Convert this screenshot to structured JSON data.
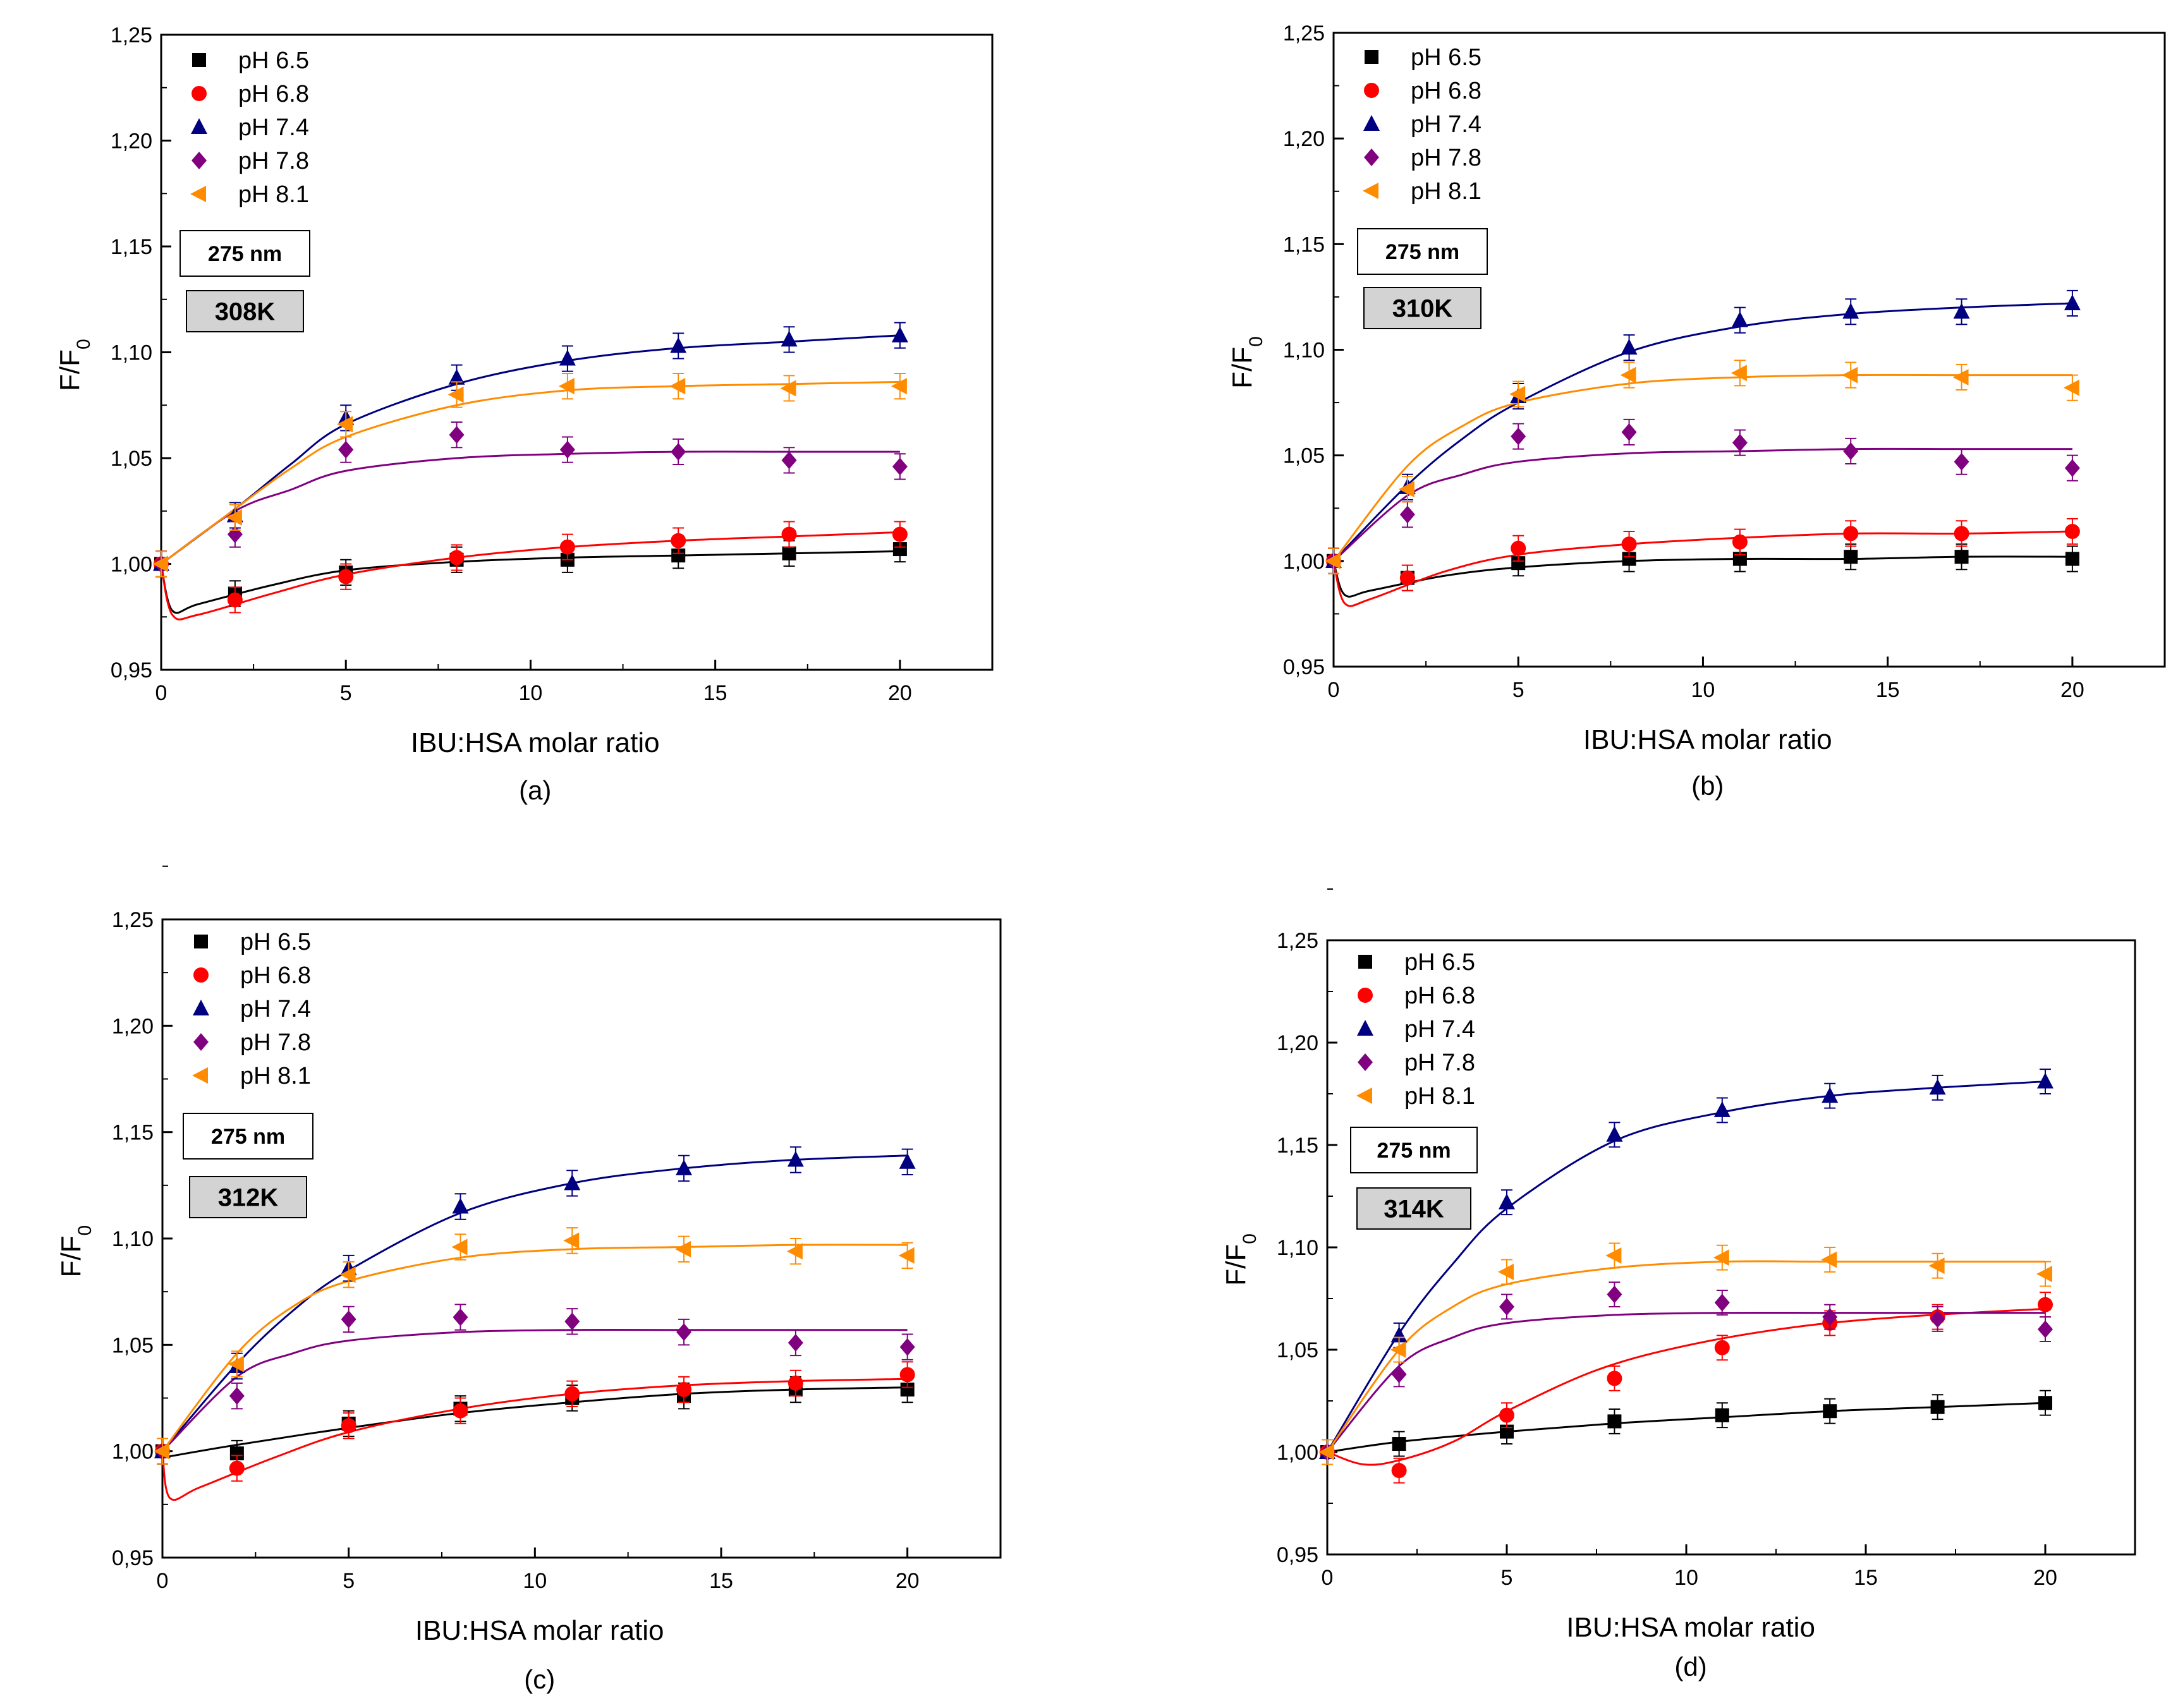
{
  "figure": {
    "panels": [
      {
        "id": "a",
        "caption": "(a)",
        "wavelength_label": "275 nm",
        "temperature_label": "308K"
      },
      {
        "id": "b",
        "caption": "(b)",
        "wavelength_label": "275 nm",
        "temperature_label": "310K"
      },
      {
        "id": "c",
        "caption": "(c)",
        "wavelength_label": "275 nm",
        "temperature_label": "312K"
      },
      {
        "id": "d",
        "caption": "(d)",
        "wavelength_label": "275 nm",
        "temperature_label": "314K"
      }
    ]
  },
  "chart_data": [
    {
      "type": "scatter",
      "title": "308K",
      "xlabel": "IBU:HSA molar ratio",
      "ylabel": "F/F0",
      "xlim": [
        0,
        22.5
      ],
      "ylim": [
        0.95,
        1.25
      ],
      "xticks": [
        "0",
        "5",
        "10",
        "15",
        "20"
      ],
      "yticks": [
        "0,95",
        "1,00",
        "1,05",
        "1,10",
        "1,15",
        "1,20",
        "1,25"
      ],
      "x": [
        0,
        2,
        5,
        8,
        11,
        14,
        17,
        20
      ],
      "series": [
        {
          "name": "pH 6.5",
          "color": "#000000",
          "marker": "square",
          "values": [
            1.0,
            0.986,
            0.996,
            1.002,
            1.002,
            1.004,
            1.005,
            1.007
          ],
          "fit": [
            1.0,
            0.978,
            0.981,
            0.99,
            0.997,
            1.001,
            1.003,
            1.004,
            1.005,
            1.006
          ],
          "fit_x": [
            0,
            0.3,
            1,
            3,
            5,
            8,
            11,
            14,
            17,
            20
          ]
        },
        {
          "name": "pH 6.8",
          "color": "#ff0000",
          "marker": "circle",
          "values": [
            1.0,
            0.983,
            0.994,
            1.003,
            1.008,
            1.011,
            1.014,
            1.014
          ],
          "fit": [
            1.0,
            0.976,
            0.976,
            0.986,
            0.995,
            1.003,
            1.008,
            1.011,
            1.013,
            1.015
          ],
          "fit_x": [
            0,
            0.3,
            1,
            3,
            5,
            8,
            11,
            14,
            17,
            20
          ]
        },
        {
          "name": "pH 7.4",
          "color": "#000080",
          "marker": "triangle-up",
          "values": [
            1.0,
            1.023,
            1.069,
            1.088,
            1.097,
            1.103,
            1.106,
            1.108
          ],
          "fit": [
            1.0,
            1.026,
            1.047,
            1.066,
            1.085,
            1.096,
            1.102,
            1.105,
            1.108
          ],
          "fit_x": [
            0,
            2,
            3.5,
            5,
            8,
            11,
            14,
            17,
            20
          ]
        },
        {
          "name": "pH 7.8",
          "color": "#800080",
          "marker": "diamond",
          "values": [
            1.0,
            1.014,
            1.054,
            1.061,
            1.054,
            1.053,
            1.049,
            1.046
          ],
          "fit": [
            1.0,
            1.025,
            1.035,
            1.044,
            1.05,
            1.052,
            1.053,
            1.053,
            1.053
          ],
          "fit_x": [
            0,
            2,
            3.5,
            5,
            8,
            11,
            14,
            17,
            20
          ]
        },
        {
          "name": "pH 8.1",
          "color": "#ff8c00",
          "marker": "triangle-left",
          "values": [
            1.0,
            1.022,
            1.066,
            1.08,
            1.084,
            1.084,
            1.083,
            1.084
          ],
          "fit": [
            1.0,
            1.026,
            1.045,
            1.06,
            1.075,
            1.082,
            1.084,
            1.085,
            1.086
          ],
          "fit_x": [
            0,
            2,
            3.5,
            5,
            8,
            11,
            14,
            17,
            20
          ]
        }
      ]
    },
    {
      "type": "scatter",
      "title": "310K",
      "xlabel": "IBU:HSA molar ratio",
      "ylabel": "F/F0",
      "xlim": [
        0,
        22.5
      ],
      "ylim": [
        0.95,
        1.25
      ],
      "xticks": [
        "0",
        "5",
        "10",
        "15",
        "20"
      ],
      "yticks": [
        "0,95",
        "1,00",
        "1,05",
        "1,10",
        "1,15",
        "1,20",
        "1,25"
      ],
      "x": [
        0,
        2,
        5,
        8,
        11,
        14,
        17,
        20
      ],
      "series": [
        {
          "name": "pH 6.5",
          "color": "#000000",
          "marker": "square",
          "values": [
            1.0,
            0.992,
            0.999,
            1.001,
            1.001,
            1.002,
            1.002,
            1.001
          ],
          "fit": [
            1.0,
            0.984,
            0.986,
            0.993,
            0.997,
            1.0,
            1.001,
            1.001,
            1.002,
            1.002
          ],
          "fit_x": [
            0,
            0.3,
            1,
            3,
            5,
            8,
            11,
            14,
            17,
            20
          ]
        },
        {
          "name": "pH 6.8",
          "color": "#ff0000",
          "marker": "circle",
          "values": [
            1.0,
            0.992,
            1.006,
            1.008,
            1.009,
            1.013,
            1.013,
            1.014
          ],
          "fit": [
            1.0,
            0.98,
            0.982,
            0.995,
            1.003,
            1.008,
            1.011,
            1.013,
            1.013,
            1.014
          ],
          "fit_x": [
            0,
            0.3,
            1,
            3,
            5,
            8,
            11,
            14,
            17,
            20
          ]
        },
        {
          "name": "pH 7.4",
          "color": "#000080",
          "marker": "triangle-up",
          "values": [
            1.0,
            1.035,
            1.078,
            1.101,
            1.114,
            1.118,
            1.118,
            1.122
          ],
          "fit": [
            1.0,
            1.036,
            1.058,
            1.075,
            1.099,
            1.111,
            1.117,
            1.12,
            1.122
          ],
          "fit_x": [
            0,
            2,
            3.5,
            5,
            8,
            11,
            14,
            17,
            20
          ]
        },
        {
          "name": "pH 7.8",
          "color": "#800080",
          "marker": "diamond",
          "values": [
            1.0,
            1.022,
            1.059,
            1.061,
            1.056,
            1.052,
            1.047,
            1.044
          ],
          "fit": [
            1.0,
            1.031,
            1.041,
            1.047,
            1.051,
            1.052,
            1.053,
            1.053,
            1.053
          ],
          "fit_x": [
            0,
            2,
            3.5,
            5,
            8,
            11,
            14,
            17,
            20
          ]
        },
        {
          "name": "pH 8.1",
          "color": "#ff8c00",
          "marker": "triangle-left",
          "values": [
            1.0,
            1.034,
            1.079,
            1.088,
            1.089,
            1.088,
            1.087,
            1.082
          ],
          "fit": [
            1.0,
            1.045,
            1.064,
            1.075,
            1.084,
            1.087,
            1.088,
            1.088,
            1.088
          ],
          "fit_x": [
            0,
            2,
            3.5,
            5,
            8,
            11,
            14,
            17,
            20
          ]
        }
      ]
    },
    {
      "type": "scatter",
      "title": "312K",
      "xlabel": "IBU:HSA molar ratio",
      "ylabel": "F/F0",
      "xlim": [
        0,
        22.5
      ],
      "ylim": [
        0.95,
        1.25
      ],
      "xticks": [
        "0",
        "5",
        "10",
        "15",
        "20"
      ],
      "yticks": [
        "0,95",
        "1,00",
        "1,05",
        "1,10",
        "1,15",
        "1,20",
        "1,25"
      ],
      "x": [
        0,
        2,
        5,
        8,
        11,
        14,
        17,
        20
      ],
      "series": [
        {
          "name": "pH 6.5",
          "color": "#000000",
          "marker": "square",
          "values": [
            1.0,
            0.999,
            1.013,
            1.02,
            1.025,
            1.026,
            1.029,
            1.029
          ],
          "fit": [
            0.997,
            1.003,
            1.011,
            1.018,
            1.023,
            1.027,
            1.029,
            1.03
          ],
          "fit_x": [
            0,
            2,
            5,
            8,
            11,
            14,
            17,
            20
          ]
        },
        {
          "name": "pH 6.8",
          "color": "#ff0000",
          "marker": "circle",
          "values": [
            1.0,
            0.992,
            1.012,
            1.019,
            1.027,
            1.029,
            1.032,
            1.036
          ],
          "fit": [
            1.0,
            0.978,
            0.983,
            0.997,
            1.009,
            1.02,
            1.027,
            1.031,
            1.033,
            1.034
          ],
          "fit_x": [
            0,
            0.2,
            1,
            3,
            5,
            8,
            11,
            14,
            17,
            20
          ]
        },
        {
          "name": "pH 7.4",
          "color": "#000080",
          "marker": "triangle-up",
          "values": [
            1.0,
            1.04,
            1.086,
            1.115,
            1.126,
            1.133,
            1.137,
            1.136
          ],
          "fit": [
            1.0,
            1.041,
            1.066,
            1.085,
            1.112,
            1.126,
            1.133,
            1.137,
            1.139
          ],
          "fit_x": [
            0,
            2,
            3.5,
            5,
            8,
            11,
            14,
            17,
            20
          ]
        },
        {
          "name": "pH 7.8",
          "color": "#800080",
          "marker": "diamond",
          "values": [
            1.0,
            1.026,
            1.062,
            1.063,
            1.061,
            1.056,
            1.051,
            1.049
          ],
          "fit": [
            1.0,
            1.035,
            1.046,
            1.052,
            1.056,
            1.057,
            1.057,
            1.057,
            1.057
          ],
          "fit_x": [
            0,
            2,
            3.5,
            5,
            8,
            11,
            14,
            17,
            20
          ]
        },
        {
          "name": "pH 8.1",
          "color": "#ff8c00",
          "marker": "triangle-left",
          "values": [
            1.0,
            1.041,
            1.083,
            1.096,
            1.099,
            1.095,
            1.094,
            1.092
          ],
          "fit": [
            1.0,
            1.046,
            1.068,
            1.08,
            1.091,
            1.095,
            1.096,
            1.097,
            1.097
          ],
          "fit_x": [
            0,
            2,
            3.5,
            5,
            8,
            11,
            14,
            17,
            20
          ]
        }
      ]
    },
    {
      "type": "scatter",
      "title": "314K",
      "xlabel": "IBU:HSA molar ratio",
      "ylabel": "F/F0",
      "xlim": [
        0,
        22.5
      ],
      "ylim": [
        0.95,
        1.25
      ],
      "xticks": [
        "0",
        "5",
        "10",
        "15",
        "20"
      ],
      "yticks": [
        "0,95",
        "1,00",
        "1,05",
        "1,10",
        "1,15",
        "1,20",
        "1,25"
      ],
      "x": [
        0,
        2,
        5,
        8,
        11,
        14,
        17,
        20
      ],
      "series": [
        {
          "name": "pH 6.5",
          "color": "#000000",
          "marker": "square",
          "values": [
            1.0,
            1.004,
            1.01,
            1.015,
            1.018,
            1.02,
            1.022,
            1.024
          ],
          "fit": [
            1.0,
            1.005,
            1.01,
            1.014,
            1.017,
            1.02,
            1.022,
            1.024
          ],
          "fit_x": [
            0,
            2,
            5,
            8,
            11,
            14,
            17,
            20
          ]
        },
        {
          "name": "pH 6.8",
          "color": "#ff0000",
          "marker": "circle",
          "values": [
            1.0,
            0.991,
            1.018,
            1.036,
            1.051,
            1.063,
            1.066,
            1.072
          ],
          "fit": [
            1.0,
            0.994,
            0.996,
            1.005,
            1.02,
            1.04,
            1.052,
            1.061,
            1.066,
            1.07
          ],
          "fit_x": [
            0,
            1,
            2,
            3.5,
            5,
            7.5,
            10,
            13,
            16,
            20
          ]
        },
        {
          "name": "pH 7.4",
          "color": "#000080",
          "marker": "triangle-up",
          "values": [
            1.0,
            1.057,
            1.122,
            1.155,
            1.167,
            1.174,
            1.178,
            1.181
          ],
          "fit": [
            1.0,
            1.058,
            1.092,
            1.119,
            1.152,
            1.166,
            1.174,
            1.178,
            1.181
          ],
          "fit_x": [
            0,
            2,
            3.5,
            5,
            8,
            11,
            14,
            17,
            20
          ]
        },
        {
          "name": "pH 7.8",
          "color": "#800080",
          "marker": "diamond",
          "values": [
            1.0,
            1.038,
            1.071,
            1.077,
            1.073,
            1.066,
            1.065,
            1.06
          ],
          "fit": [
            1.0,
            1.042,
            1.056,
            1.063,
            1.067,
            1.068,
            1.068,
            1.068,
            1.068
          ],
          "fit_x": [
            0,
            2,
            3.5,
            5,
            8,
            11,
            14,
            17,
            20
          ]
        },
        {
          "name": "pH 8.1",
          "color": "#ff8c00",
          "marker": "triangle-left",
          "values": [
            1.0,
            1.05,
            1.088,
            1.096,
            1.095,
            1.094,
            1.091,
            1.087
          ],
          "fit": [
            1.0,
            1.05,
            1.071,
            1.082,
            1.09,
            1.093,
            1.093,
            1.093,
            1.093
          ],
          "fit_x": [
            0,
            2,
            3.5,
            5,
            8,
            11,
            14,
            17,
            20
          ]
        }
      ]
    }
  ]
}
